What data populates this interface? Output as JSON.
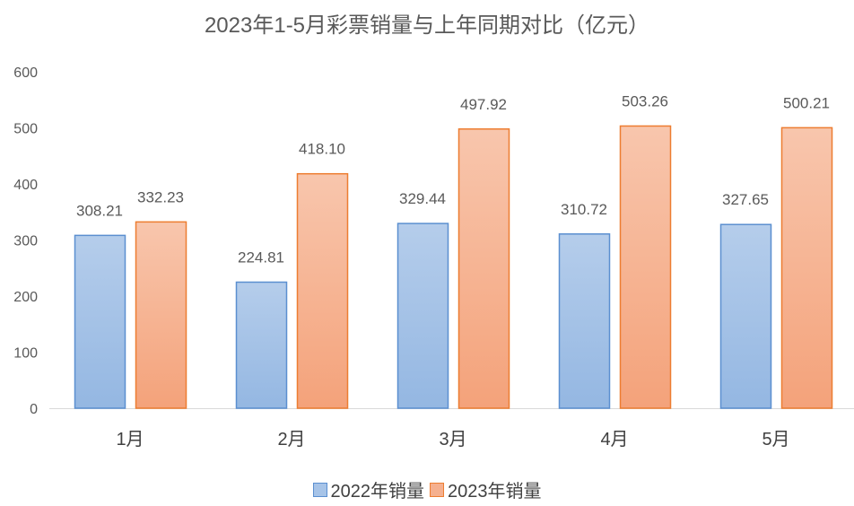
{
  "chart_data": {
    "type": "bar",
    "title": "2023年1-5月彩票销量与上年同期对比（亿元）",
    "categories": [
      "1月",
      "2月",
      "3月",
      "4月",
      "5月"
    ],
    "series": [
      {
        "name": "2022年销量",
        "values": [
          308.21,
          224.81,
          329.44,
          310.72,
          327.65
        ],
        "color": "#a7c4e8",
        "border": "#5b8fd0"
      },
      {
        "name": "2023年销量",
        "values": [
          332.23,
          418.1,
          497.92,
          503.26,
          500.21
        ],
        "color": "#f5b08f",
        "border": "#ed7d31"
      }
    ],
    "value_labels": [
      [
        "308.21",
        "224.81",
        "329.44",
        "310.72",
        "327.65"
      ],
      [
        "332.23",
        "418.10",
        "497.92",
        "503.26",
        "500.21"
      ]
    ],
    "ylim": [
      0,
      600
    ],
    "yticks": [
      "0",
      "100",
      "200",
      "300",
      "400",
      "500",
      "600"
    ],
    "grid": false,
    "legend": "bottom"
  }
}
